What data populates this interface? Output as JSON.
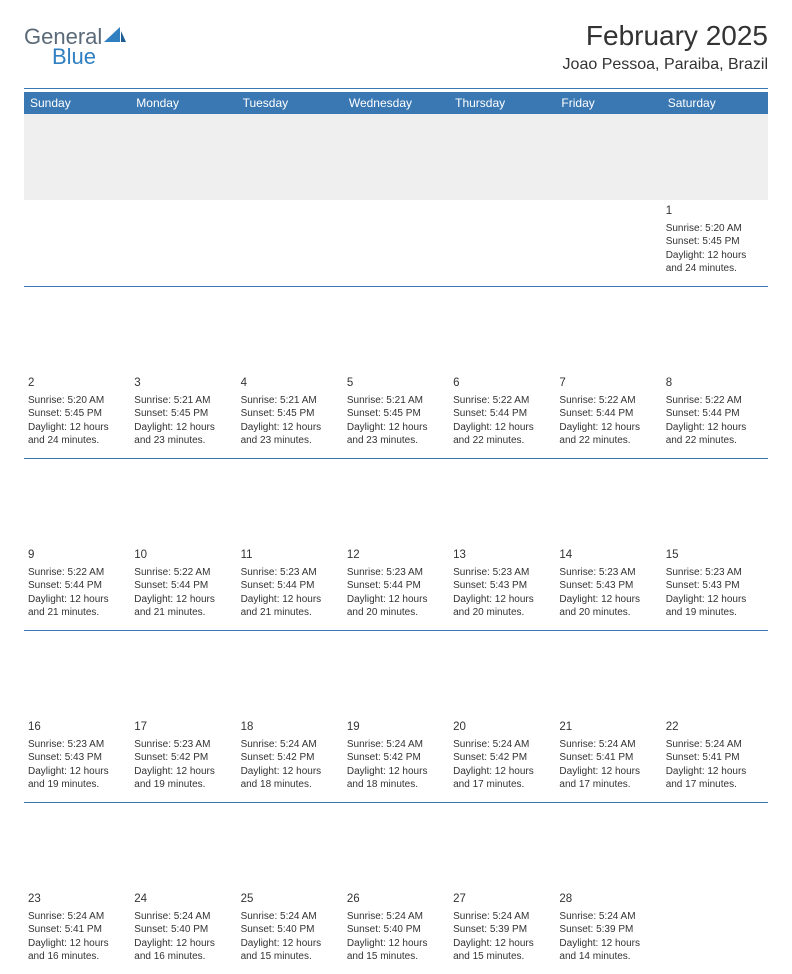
{
  "logo": {
    "word1": "General",
    "word2": "Blue"
  },
  "header": {
    "month_title": "February 2025",
    "location": "Joao Pessoa, Paraiba, Brazil"
  },
  "colors": {
    "header_bg": "#3a78b3",
    "header_text": "#ffffff",
    "rule": "#3a78b3",
    "first_row_bg": "#efeff0",
    "body_text": "#333333",
    "logo_gray": "#5a6a78",
    "logo_blue": "#2f7fc1",
    "page_bg": "#ffffff"
  },
  "calendar": {
    "type": "table",
    "columns": [
      "Sunday",
      "Monday",
      "Tuesday",
      "Wednesday",
      "Thursday",
      "Friday",
      "Saturday"
    ],
    "weeks": [
      [
        {
          "day": "",
          "sunrise": "",
          "sunset": "",
          "daylight": ""
        },
        {
          "day": "",
          "sunrise": "",
          "sunset": "",
          "daylight": ""
        },
        {
          "day": "",
          "sunrise": "",
          "sunset": "",
          "daylight": ""
        },
        {
          "day": "",
          "sunrise": "",
          "sunset": "",
          "daylight": ""
        },
        {
          "day": "",
          "sunrise": "",
          "sunset": "",
          "daylight": ""
        },
        {
          "day": "",
          "sunrise": "",
          "sunset": "",
          "daylight": ""
        },
        {
          "day": "1",
          "sunrise": "Sunrise: 5:20 AM",
          "sunset": "Sunset: 5:45 PM",
          "daylight": "Daylight: 12 hours and 24 minutes."
        }
      ],
      [
        {
          "day": "2",
          "sunrise": "Sunrise: 5:20 AM",
          "sunset": "Sunset: 5:45 PM",
          "daylight": "Daylight: 12 hours and 24 minutes."
        },
        {
          "day": "3",
          "sunrise": "Sunrise: 5:21 AM",
          "sunset": "Sunset: 5:45 PM",
          "daylight": "Daylight: 12 hours and 23 minutes."
        },
        {
          "day": "4",
          "sunrise": "Sunrise: 5:21 AM",
          "sunset": "Sunset: 5:45 PM",
          "daylight": "Daylight: 12 hours and 23 minutes."
        },
        {
          "day": "5",
          "sunrise": "Sunrise: 5:21 AM",
          "sunset": "Sunset: 5:45 PM",
          "daylight": "Daylight: 12 hours and 23 minutes."
        },
        {
          "day": "6",
          "sunrise": "Sunrise: 5:22 AM",
          "sunset": "Sunset: 5:44 PM",
          "daylight": "Daylight: 12 hours and 22 minutes."
        },
        {
          "day": "7",
          "sunrise": "Sunrise: 5:22 AM",
          "sunset": "Sunset: 5:44 PM",
          "daylight": "Daylight: 12 hours and 22 minutes."
        },
        {
          "day": "8",
          "sunrise": "Sunrise: 5:22 AM",
          "sunset": "Sunset: 5:44 PM",
          "daylight": "Daylight: 12 hours and 22 minutes."
        }
      ],
      [
        {
          "day": "9",
          "sunrise": "Sunrise: 5:22 AM",
          "sunset": "Sunset: 5:44 PM",
          "daylight": "Daylight: 12 hours and 21 minutes."
        },
        {
          "day": "10",
          "sunrise": "Sunrise: 5:22 AM",
          "sunset": "Sunset: 5:44 PM",
          "daylight": "Daylight: 12 hours and 21 minutes."
        },
        {
          "day": "11",
          "sunrise": "Sunrise: 5:23 AM",
          "sunset": "Sunset: 5:44 PM",
          "daylight": "Daylight: 12 hours and 21 minutes."
        },
        {
          "day": "12",
          "sunrise": "Sunrise: 5:23 AM",
          "sunset": "Sunset: 5:44 PM",
          "daylight": "Daylight: 12 hours and 20 minutes."
        },
        {
          "day": "13",
          "sunrise": "Sunrise: 5:23 AM",
          "sunset": "Sunset: 5:43 PM",
          "daylight": "Daylight: 12 hours and 20 minutes."
        },
        {
          "day": "14",
          "sunrise": "Sunrise: 5:23 AM",
          "sunset": "Sunset: 5:43 PM",
          "daylight": "Daylight: 12 hours and 20 minutes."
        },
        {
          "day": "15",
          "sunrise": "Sunrise: 5:23 AM",
          "sunset": "Sunset: 5:43 PM",
          "daylight": "Daylight: 12 hours and 19 minutes."
        }
      ],
      [
        {
          "day": "16",
          "sunrise": "Sunrise: 5:23 AM",
          "sunset": "Sunset: 5:43 PM",
          "daylight": "Daylight: 12 hours and 19 minutes."
        },
        {
          "day": "17",
          "sunrise": "Sunrise: 5:23 AM",
          "sunset": "Sunset: 5:42 PM",
          "daylight": "Daylight: 12 hours and 19 minutes."
        },
        {
          "day": "18",
          "sunrise": "Sunrise: 5:24 AM",
          "sunset": "Sunset: 5:42 PM",
          "daylight": "Daylight: 12 hours and 18 minutes."
        },
        {
          "day": "19",
          "sunrise": "Sunrise: 5:24 AM",
          "sunset": "Sunset: 5:42 PM",
          "daylight": "Daylight: 12 hours and 18 minutes."
        },
        {
          "day": "20",
          "sunrise": "Sunrise: 5:24 AM",
          "sunset": "Sunset: 5:42 PM",
          "daylight": "Daylight: 12 hours and 17 minutes."
        },
        {
          "day": "21",
          "sunrise": "Sunrise: 5:24 AM",
          "sunset": "Sunset: 5:41 PM",
          "daylight": "Daylight: 12 hours and 17 minutes."
        },
        {
          "day": "22",
          "sunrise": "Sunrise: 5:24 AM",
          "sunset": "Sunset: 5:41 PM",
          "daylight": "Daylight: 12 hours and 17 minutes."
        }
      ],
      [
        {
          "day": "23",
          "sunrise": "Sunrise: 5:24 AM",
          "sunset": "Sunset: 5:41 PM",
          "daylight": "Daylight: 12 hours and 16 minutes."
        },
        {
          "day": "24",
          "sunrise": "Sunrise: 5:24 AM",
          "sunset": "Sunset: 5:40 PM",
          "daylight": "Daylight: 12 hours and 16 minutes."
        },
        {
          "day": "25",
          "sunrise": "Sunrise: 5:24 AM",
          "sunset": "Sunset: 5:40 PM",
          "daylight": "Daylight: 12 hours and 15 minutes."
        },
        {
          "day": "26",
          "sunrise": "Sunrise: 5:24 AM",
          "sunset": "Sunset: 5:40 PM",
          "daylight": "Daylight: 12 hours and 15 minutes."
        },
        {
          "day": "27",
          "sunrise": "Sunrise: 5:24 AM",
          "sunset": "Sunset: 5:39 PM",
          "daylight": "Daylight: 12 hours and 15 minutes."
        },
        {
          "day": "28",
          "sunrise": "Sunrise: 5:24 AM",
          "sunset": "Sunset: 5:39 PM",
          "daylight": "Daylight: 12 hours and 14 minutes."
        },
        {
          "day": "",
          "sunrise": "",
          "sunset": "",
          "daylight": ""
        }
      ]
    ]
  }
}
